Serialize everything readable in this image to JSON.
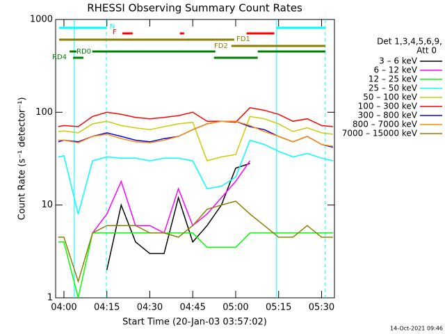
{
  "chart_data": {
    "type": "line",
    "title": "RHESSI Observing Summary Count Rates",
    "x_label": "Start Time (20-Jan-03 03:57:02)",
    "y_label": "Count Rate (s⁻¹ detector⁻¹)",
    "footer": "14-Oct-2021 09:46",
    "legend_header": [
      "Det 1,3,4,5,6,9,",
      "Att 0"
    ],
    "log_scale": true,
    "xlim": [
      -2.9,
      94.5
    ],
    "xticks": [
      {
        "value": 0,
        "label": "04:00"
      },
      {
        "value": 15,
        "label": "04:15"
      },
      {
        "value": 30,
        "label": "04:30"
      },
      {
        "value": 45,
        "label": "04:45"
      },
      {
        "value": 60,
        "label": "05:00"
      },
      {
        "value": 75,
        "label": "05:15"
      },
      {
        "value": 90,
        "label": "05:30"
      }
    ],
    "ylim": [
      1,
      1000
    ],
    "yticks": [
      1,
      10,
      100,
      1000
    ],
    "x": [
      -2,
      0,
      5,
      10,
      15,
      20,
      25,
      30,
      35,
      40,
      45,
      50,
      55,
      60,
      65,
      70,
      75,
      80,
      85,
      90,
      94
    ],
    "series": [
      {
        "name": "3 – 6 keV",
        "color": "#000000",
        "values": [
          null,
          null,
          null,
          null,
          2,
          10,
          4,
          3,
          3,
          12,
          4,
          6,
          10,
          25,
          28,
          null,
          null,
          null,
          null,
          null,
          null
        ]
      },
      {
        "name": "6 – 12 keV",
        "color": "#ff00ff",
        "values": [
          null,
          null,
          null,
          5,
          8,
          18,
          6,
          6,
          5,
          15,
          6,
          8,
          12,
          18,
          30,
          null,
          null,
          null,
          null,
          null,
          null
        ]
      },
      {
        "name": "12 – 25 keV",
        "color": "#00ff00",
        "values": [
          4,
          4,
          1,
          5,
          5,
          5,
          5,
          5,
          5,
          5,
          5,
          3.5,
          3.5,
          3.5,
          5,
          5,
          5,
          5,
          5,
          5,
          5
        ]
      },
      {
        "name": "25 – 50 keV",
        "color": "#00ffff",
        "values": [
          33,
          34,
          8,
          30,
          33,
          32,
          32,
          30,
          32,
          32,
          30,
          15,
          16,
          20,
          50,
          45,
          38,
          33,
          36,
          32,
          30
        ]
      },
      {
        "name": "50 – 100 keV",
        "color": "#cccc00",
        "values": [
          62,
          63,
          60,
          75,
          80,
          72,
          68,
          65,
          70,
          75,
          78,
          30,
          33,
          35,
          90,
          85,
          75,
          62,
          68,
          60,
          58
        ]
      },
      {
        "name": "100 – 300 keV",
        "color": "#ff0000",
        "values": [
          70,
          72,
          70,
          90,
          100,
          95,
          88,
          85,
          88,
          92,
          100,
          80,
          80,
          78,
          112,
          105,
          95,
          80,
          85,
          72,
          70
        ]
      },
      {
        "name": "300 – 800 keV",
        "color": "#0000ff",
        "values": [
          48,
          50,
          48,
          55,
          60,
          55,
          50,
          48,
          52,
          55,
          65,
          75,
          80,
          80,
          70,
          65,
          55,
          48,
          55,
          45,
          42
        ]
      },
      {
        "name": "800 – 7000 keV",
        "color": "#ff8c00",
        "values": [
          50,
          50,
          47,
          55,
          58,
          52,
          48,
          47,
          50,
          55,
          65,
          75,
          80,
          80,
          72,
          62,
          55,
          48,
          55,
          45,
          43
        ]
      },
      {
        "name": "7000 – 15000 keV",
        "color": "#8b7d00",
        "values": [
          4.5,
          4.5,
          1.5,
          5,
          6,
          6,
          6,
          5,
          5,
          4.5,
          6,
          9,
          10,
          11,
          8,
          6,
          4.5,
          4.5,
          6,
          4.5,
          4.5
        ]
      }
    ],
    "vlines": [
      {
        "x": 3.6,
        "style": "solid"
      },
      {
        "x": 14.8,
        "style": "dashed"
      },
      {
        "x": 74.3,
        "style": "solid"
      },
      {
        "x": 91.3,
        "style": "dashed"
      }
    ],
    "vline_color": "#00ffff",
    "flags": [
      {
        "label": "N",
        "color": "#00ffff",
        "segments": [
          [
            -1.7,
            14.8
          ],
          [
            74.3,
            91.3
          ]
        ]
      },
      {
        "label": "F",
        "color": "#ff0000",
        "segments": [
          [
            20.4,
            24
          ],
          [
            40.5,
            42
          ],
          [
            63.8,
            73.5
          ]
        ]
      },
      {
        "label": "FD1",
        "color": "#8b7d00",
        "segments": [
          [
            -1.7,
            59.5
          ]
        ]
      },
      {
        "label": "FD2",
        "color": "#8b7d00",
        "segments": [
          [
            58.5,
            91.3
          ]
        ]
      },
      {
        "label": "RD0",
        "color": "#008000",
        "segments": [
          [
            2,
            4.4
          ],
          [
            9.9,
            52.9
          ],
          [
            67.7,
            91.3
          ]
        ]
      },
      {
        "label": "RD4",
        "color": "#008000",
        "segments": [
          [
            3.2,
            6.8
          ],
          [
            52.4,
            67.7
          ]
        ]
      }
    ]
  }
}
